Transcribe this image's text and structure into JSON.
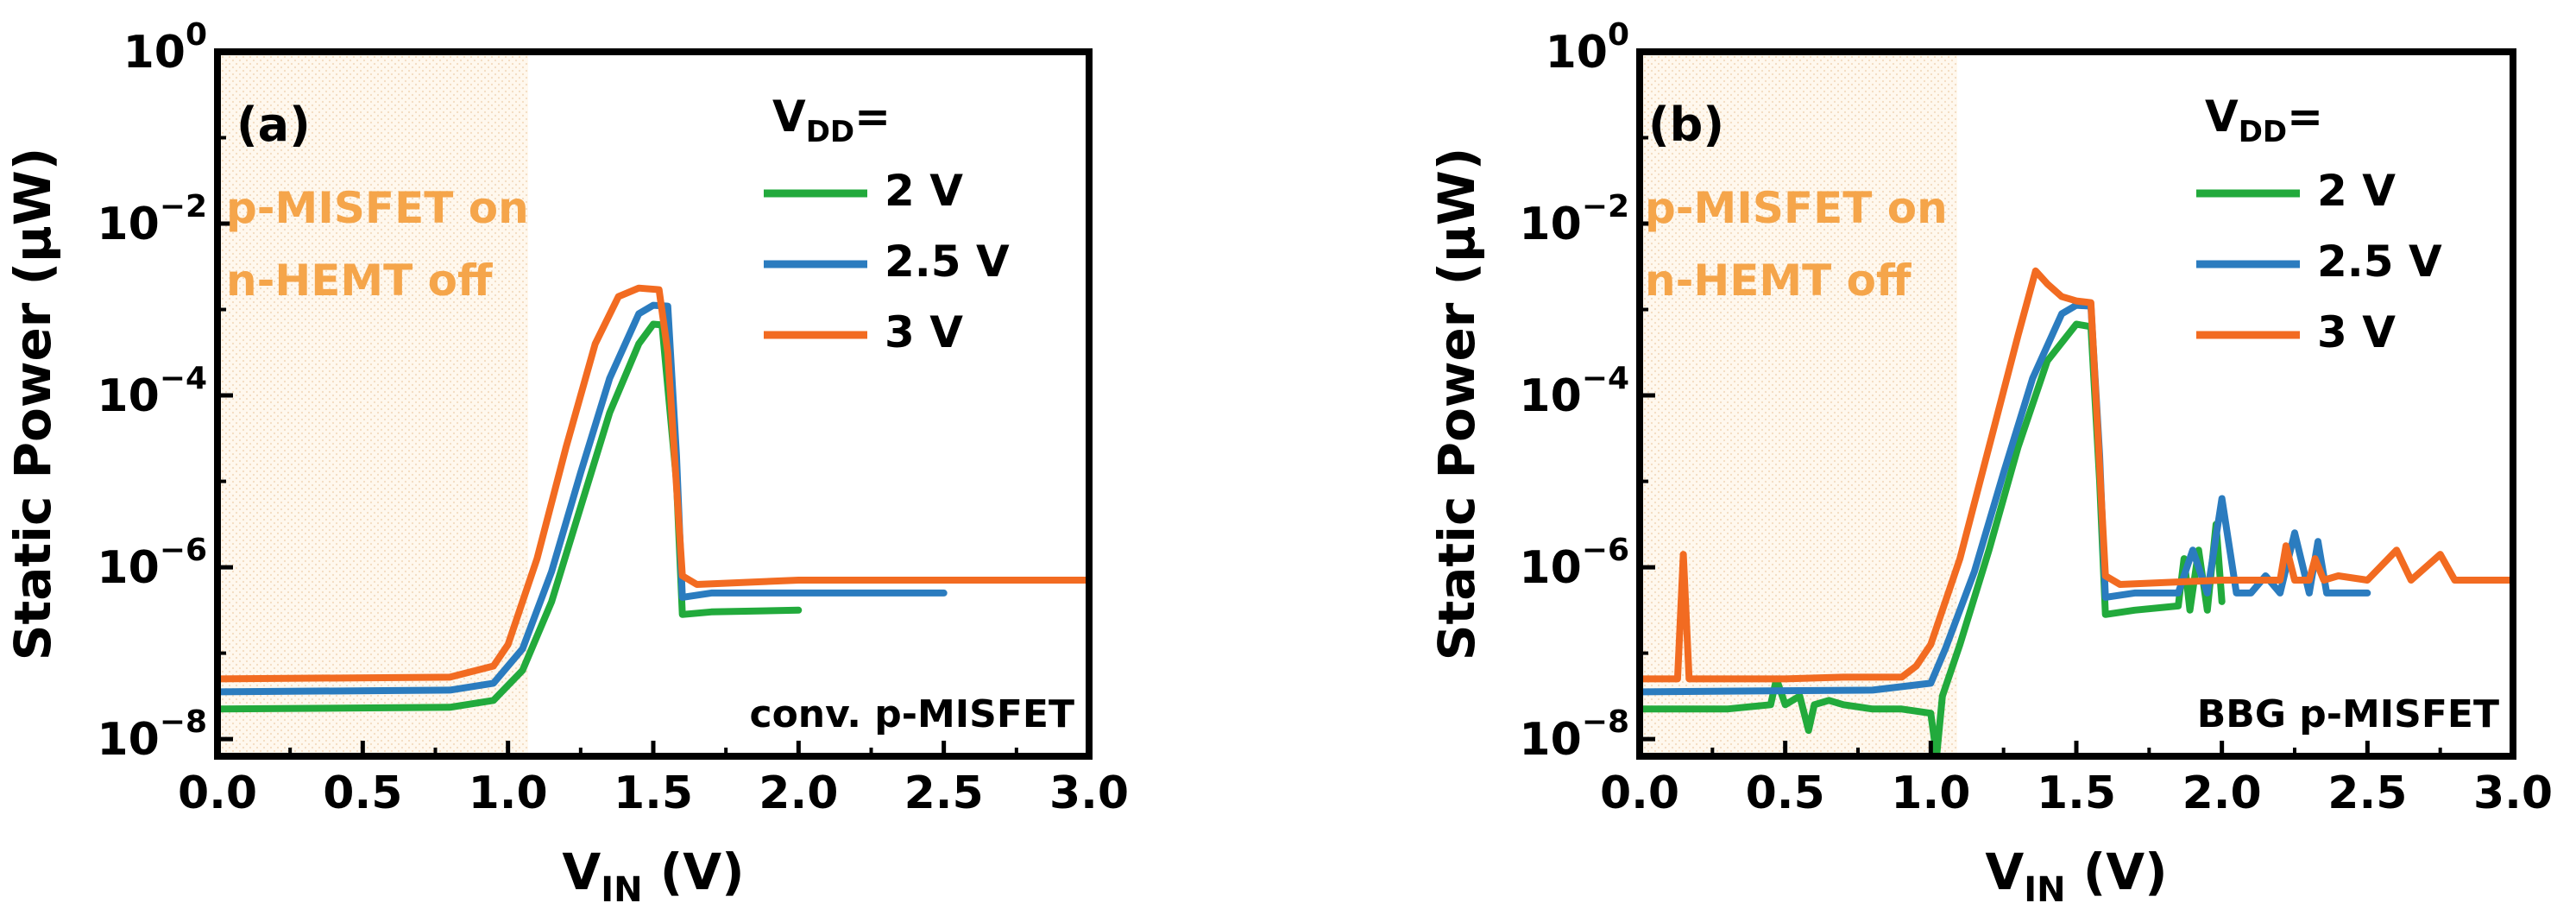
{
  "chart_data": [
    {
      "type": "line",
      "panel_label": "(a)",
      "device": "conv. p-MISFET",
      "region_label": [
        "p-MISFET on",
        "n-HEMT off"
      ],
      "xlabel": "V_IN (V)",
      "xlabel_main": "V",
      "xlabel_sub": "IN",
      "xlabel_unit": " (V)",
      "ylabel": "Static Power (μW)",
      "xlim": [
        0,
        3
      ],
      "ylim_log10": [
        -8.2,
        0
      ],
      "yscale": "log",
      "xticks": [
        "0.0",
        "0.5",
        "1.0",
        "1.5",
        "2.0",
        "2.5",
        "3.0"
      ],
      "yticks": [
        {
          "base": "10",
          "exp": "0"
        },
        {
          "base": "10",
          "exp": "−2"
        },
        {
          "base": "10",
          "exp": "−4"
        },
        {
          "base": "10",
          "exp": "−6"
        },
        {
          "base": "10",
          "exp": "−8"
        }
      ],
      "legend_title_main": "V",
      "legend_title_sub": "DD",
      "legend_title_suffix": "=",
      "series": [
        {
          "name": "2 V",
          "color": "#22aa3c",
          "x": [
            0,
            0.8,
            0.95,
            1.05,
            1.15,
            1.25,
            1.35,
            1.45,
            1.5,
            1.53,
            1.58,
            1.6,
            1.7,
            2.0
          ],
          "log10_y": [
            -7.65,
            -7.63,
            -7.55,
            -7.2,
            -6.4,
            -5.3,
            -4.2,
            -3.4,
            -3.17,
            -3.18,
            -5.0,
            -6.55,
            -6.52,
            -6.5
          ]
        },
        {
          "name": "2.5 V",
          "color": "#2b7cbf",
          "x": [
            0,
            0.8,
            0.95,
            1.05,
            1.15,
            1.25,
            1.35,
            1.45,
            1.5,
            1.55,
            1.58,
            1.6,
            1.7,
            2.5
          ],
          "log10_y": [
            -7.45,
            -7.43,
            -7.35,
            -6.95,
            -6.05,
            -4.9,
            -3.8,
            -3.05,
            -2.95,
            -2.96,
            -4.7,
            -6.35,
            -6.3,
            -6.3
          ]
        },
        {
          "name": "3 V",
          "color": "#f26b21",
          "x": [
            0,
            0.8,
            0.95,
            1.0,
            1.1,
            1.2,
            1.3,
            1.38,
            1.45,
            1.52,
            1.55,
            1.6,
            1.65,
            2.0,
            3.0
          ],
          "log10_y": [
            -7.3,
            -7.28,
            -7.15,
            -6.9,
            -5.9,
            -4.6,
            -3.4,
            -2.85,
            -2.75,
            -2.77,
            -3.5,
            -6.1,
            -6.2,
            -6.15,
            -6.15
          ]
        }
      ]
    },
    {
      "type": "line",
      "panel_label": "(b)",
      "device": "BBG p-MISFET",
      "region_label": [
        "p-MISFET on",
        "n-HEMT off"
      ],
      "xlabel": "V_IN (V)",
      "xlabel_main": "V",
      "xlabel_sub": "IN",
      "xlabel_unit": " (V)",
      "ylabel": "Static Power (μW)",
      "xlim": [
        0,
        3
      ],
      "ylim_log10": [
        -8.2,
        0
      ],
      "yscale": "log",
      "xticks": [
        "0.0",
        "0.5",
        "1.0",
        "1.5",
        "2.0",
        "2.5",
        "3.0"
      ],
      "yticks": [
        {
          "base": "10",
          "exp": "0"
        },
        {
          "base": "10",
          "exp": "−2"
        },
        {
          "base": "10",
          "exp": "−4"
        },
        {
          "base": "10",
          "exp": "−6"
        },
        {
          "base": "10",
          "exp": "−8"
        }
      ],
      "legend_title_main": "V",
      "legend_title_sub": "DD",
      "legend_title_suffix": "=",
      "series": [
        {
          "name": "2 V",
          "color": "#22aa3c",
          "x": [
            0,
            0.3,
            0.45,
            0.47,
            0.5,
            0.55,
            0.58,
            0.6,
            0.65,
            0.7,
            0.8,
            0.9,
            1.0,
            1.02,
            1.04,
            1.1,
            1.2,
            1.3,
            1.4,
            1.5,
            1.55,
            1.58,
            1.6,
            1.7,
            1.85,
            1.87,
            1.89,
            1.92,
            1.95,
            1.98,
            2.0
          ],
          "log10_y": [
            -7.65,
            -7.65,
            -7.6,
            -7.3,
            -7.6,
            -7.5,
            -7.9,
            -7.6,
            -7.55,
            -7.6,
            -7.65,
            -7.65,
            -7.7,
            -8.2,
            -7.5,
            -6.9,
            -5.8,
            -4.6,
            -3.6,
            -3.17,
            -3.2,
            -5.0,
            -6.55,
            -6.5,
            -6.45,
            -5.9,
            -6.5,
            -5.8,
            -6.5,
            -5.5,
            -6.4
          ]
        },
        {
          "name": "2.5 V",
          "color": "#2b7cbf",
          "x": [
            0,
            0.8,
            1.0,
            1.05,
            1.15,
            1.25,
            1.35,
            1.45,
            1.5,
            1.55,
            1.58,
            1.6,
            1.7,
            1.85,
            1.9,
            1.95,
            2.0,
            2.05,
            2.1,
            2.15,
            2.2,
            2.25,
            2.3,
            2.33,
            2.36,
            2.4,
            2.5
          ],
          "log10_y": [
            -7.45,
            -7.43,
            -7.35,
            -6.95,
            -6.05,
            -4.9,
            -3.8,
            -3.05,
            -2.95,
            -2.96,
            -4.7,
            -6.35,
            -6.3,
            -6.3,
            -5.8,
            -6.3,
            -5.2,
            -6.3,
            -6.3,
            -6.1,
            -6.3,
            -5.6,
            -6.3,
            -5.7,
            -6.3,
            -6.3,
            -6.3
          ]
        },
        {
          "name": "3 V",
          "color": "#f26b21",
          "x": [
            0,
            0.1,
            0.13,
            0.15,
            0.17,
            0.2,
            0.3,
            0.5,
            0.7,
            0.9,
            0.95,
            1.0,
            1.1,
            1.2,
            1.3,
            1.36,
            1.4,
            1.45,
            1.5,
            1.55,
            1.6,
            1.65,
            2.0,
            2.2,
            2.22,
            2.25,
            2.3,
            2.32,
            2.35,
            2.4,
            2.5,
            2.6,
            2.65,
            2.75,
            2.8,
            3.0
          ],
          "log10_y": [
            -7.3,
            -7.3,
            -7.3,
            -5.85,
            -7.3,
            -7.3,
            -7.3,
            -7.3,
            -7.28,
            -7.28,
            -7.15,
            -6.9,
            -5.9,
            -4.6,
            -3.3,
            -2.55,
            -2.7,
            -2.85,
            -2.9,
            -2.92,
            -6.1,
            -6.2,
            -6.15,
            -6.15,
            -5.75,
            -6.15,
            -6.15,
            -5.9,
            -6.15,
            -6.1,
            -6.15,
            -5.8,
            -6.15,
            -5.85,
            -6.15,
            -6.15
          ]
        }
      ]
    }
  ]
}
